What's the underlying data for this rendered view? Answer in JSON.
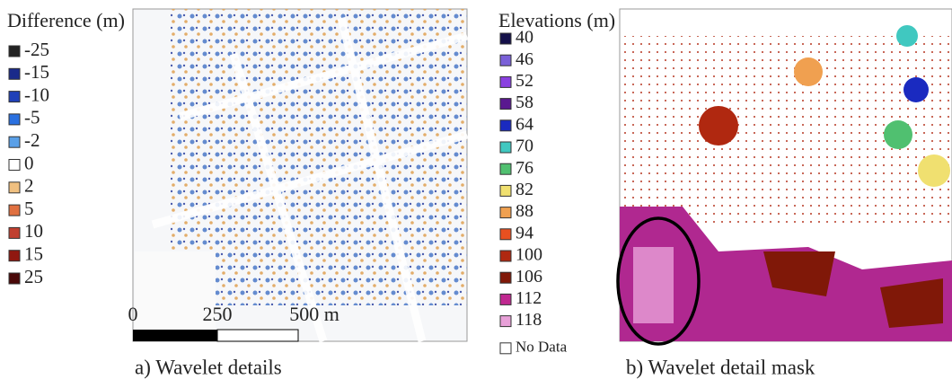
{
  "panels": [
    {
      "legend": {
        "title": "Difference (m)",
        "items": [
          {
            "label": "-25",
            "color": "#222222"
          },
          {
            "label": "-15",
            "color": "#1a2a8a"
          },
          {
            "label": "-10",
            "color": "#2040b8"
          },
          {
            "label": "-5",
            "color": "#2a70e0"
          },
          {
            "label": "-2",
            "color": "#5aa0e8"
          },
          {
            "label": "0",
            "color": "#ffffff"
          },
          {
            "label": "2",
            "color": "#f0c080"
          },
          {
            "label": "5",
            "color": "#e07040"
          },
          {
            "label": "10",
            "color": "#c04030"
          },
          {
            "label": "15",
            "color": "#901810"
          },
          {
            "label": "25",
            "color": "#4a0808"
          }
        ]
      },
      "scale_bar": [
        "0",
        "250",
        "500 m"
      ],
      "caption": "a) Wavelet details"
    },
    {
      "legend": {
        "title": "Elevations (m)",
        "items": [
          {
            "label": "40",
            "color": "#14104a"
          },
          {
            "label": "46",
            "color": "#7a60d8"
          },
          {
            "label": "52",
            "color": "#8a40e0"
          },
          {
            "label": "58",
            "color": "#5a1890"
          },
          {
            "label": "64",
            "color": "#1a2ac0"
          },
          {
            "label": "70",
            "color": "#40c8c0"
          },
          {
            "label": "76",
            "color": "#50c070"
          },
          {
            "label": "82",
            "color": "#f0e070"
          },
          {
            "label": "88",
            "color": "#f0a050"
          },
          {
            "label": "94",
            "color": "#e85020"
          },
          {
            "label": "100",
            "color": "#b02810"
          },
          {
            "label": "106",
            "color": "#801808"
          },
          {
            "label": "112",
            "color": "#c02890"
          },
          {
            "label": "118",
            "color": "#e8a0d8"
          },
          {
            "label": "No Data",
            "color": "#ffffff"
          }
        ]
      },
      "caption": "b) Wavelet detail mask"
    }
  ]
}
